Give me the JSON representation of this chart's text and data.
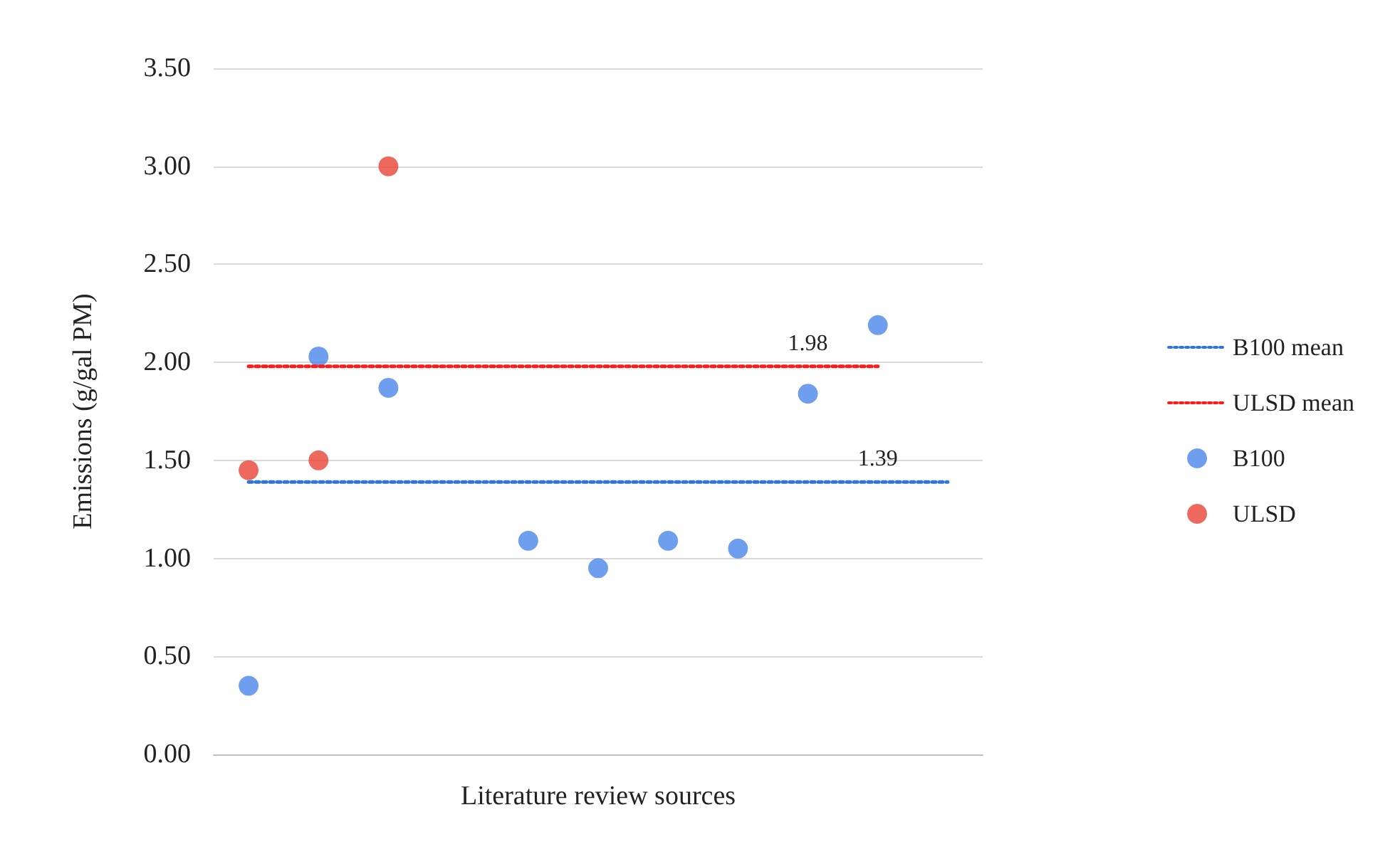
{
  "chart_data": {
    "type": "scatter",
    "categories": [
      null,
      null,
      null,
      null,
      null,
      null,
      null,
      null,
      null,
      null,
      null
    ],
    "xlabel": "Literature review sources",
    "ylabel": "Emissions (g/gal PM)",
    "ylim": [
      0,
      3.5
    ],
    "yticks": [
      {
        "value": 0,
        "label": "0.00"
      },
      {
        "value": 0.5,
        "label": "0.50"
      },
      {
        "value": 1,
        "label": "1.00"
      },
      {
        "value": 1.5,
        "label": "1.50"
      },
      {
        "value": 2,
        "label": "2.00"
      },
      {
        "value": 2.5,
        "label": "2.50"
      },
      {
        "value": 3,
        "label": "3.00"
      },
      {
        "value": 3.5,
        "label": "3.50"
      }
    ],
    "grid": "y",
    "legend": "right",
    "tick_labels": "y",
    "marker": "circle",
    "series": [
      {
        "name": "B100 mean",
        "type": "line",
        "marker": "none",
        "line_style": "dotted",
        "color": "#2e75d6",
        "values": [
          1.39,
          1.39,
          1.39,
          1.39,
          1.39,
          1.39,
          1.39,
          1.39,
          1.39,
          1.39,
          1.39
        ],
        "value_labels": [
          null,
          null,
          null,
          null,
          null,
          null,
          null,
          null,
          null,
          "1.39",
          null
        ]
      },
      {
        "name": "ULSD mean",
        "type": "line",
        "marker": "none",
        "line_style": "dotted",
        "color": "#ff1a1a",
        "values": [
          1.98,
          1.98,
          1.98,
          1.98,
          1.98,
          1.98,
          1.98,
          1.98,
          1.98,
          1.98,
          null
        ],
        "value_labels": [
          null,
          null,
          null,
          null,
          null,
          null,
          null,
          null,
          "1.98",
          null,
          null
        ]
      },
      {
        "name": "B100",
        "color": "#4a86e8",
        "values": [
          0.35,
          2.03,
          1.87,
          null,
          1.09,
          0.95,
          1.09,
          1.05,
          1.84,
          2.19,
          null
        ]
      },
      {
        "name": "ULSD",
        "color": "#ea4335",
        "values": [
          1.45,
          1.5,
          3.0,
          null,
          null,
          null,
          null,
          null,
          null,
          null,
          null
        ]
      }
    ]
  }
}
